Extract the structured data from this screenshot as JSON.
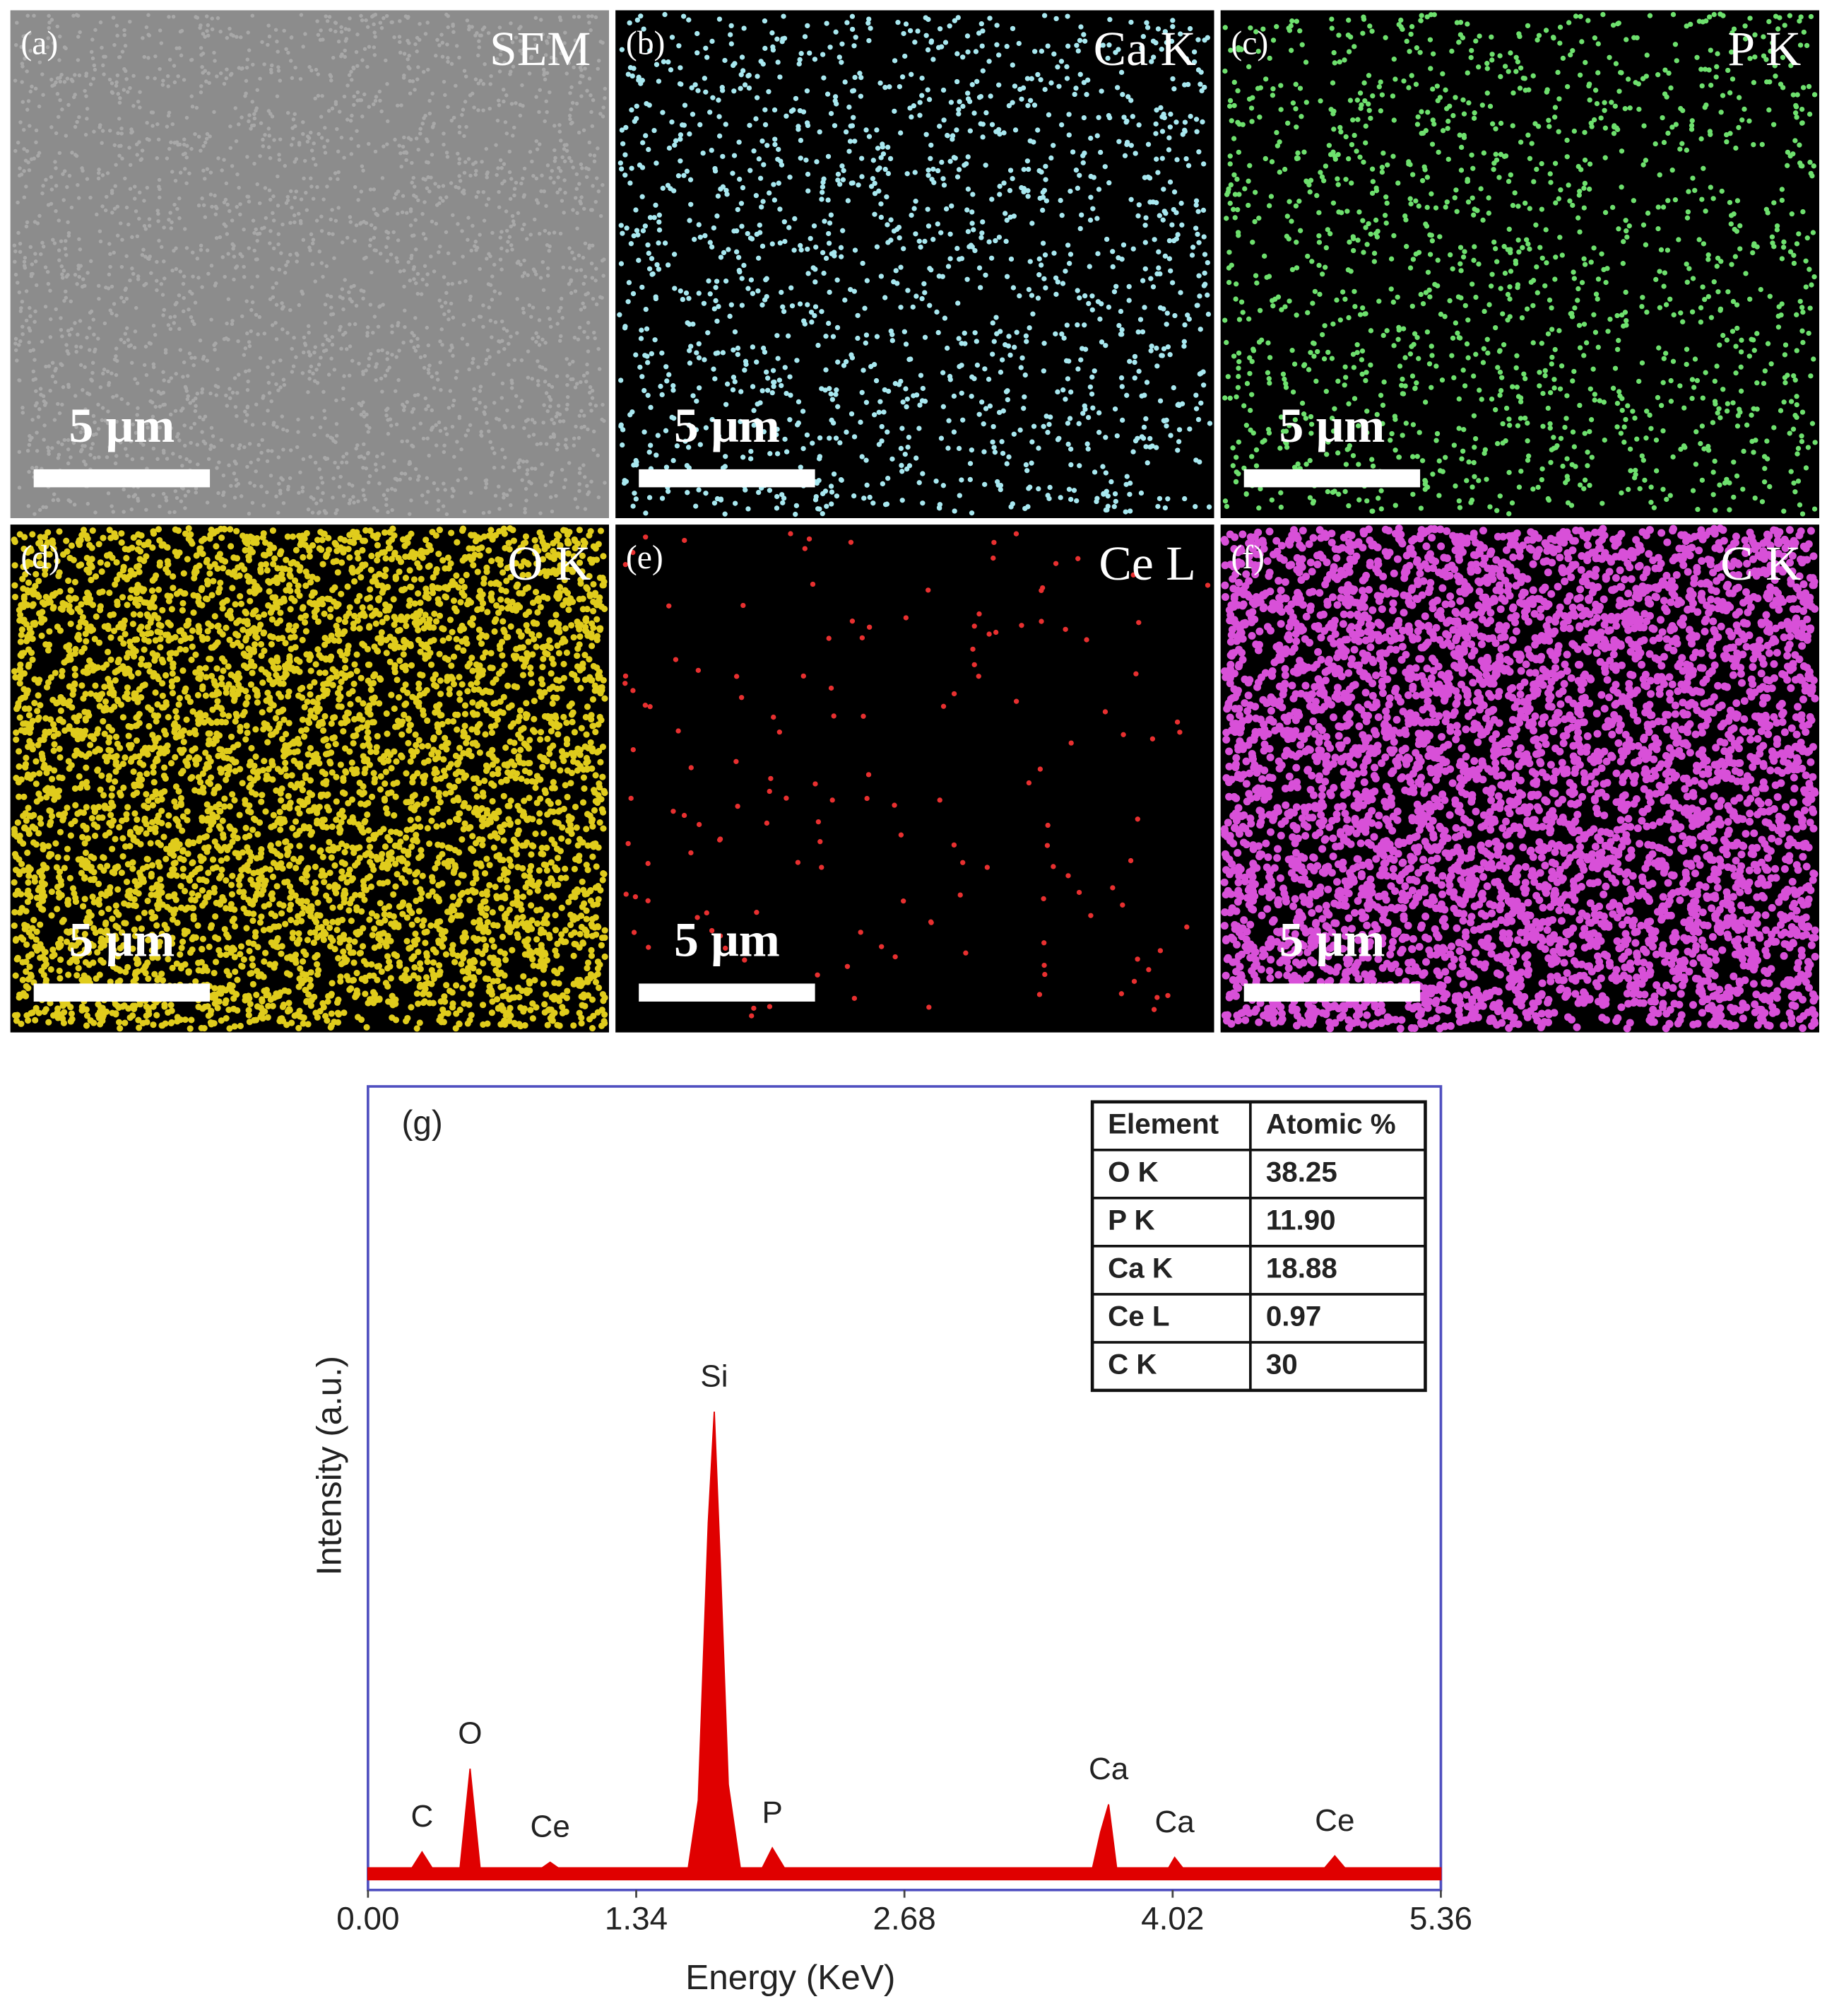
{
  "panels": [
    {
      "label": "(a)",
      "element": "SEM",
      "scale": "5 μm",
      "color": "#8c8c8c"
    },
    {
      "label": "(b)",
      "element": "Ca K",
      "scale": "5 μm",
      "color": "#a8e8f0"
    },
    {
      "label": "(c)",
      "element": "P K",
      "scale": "5 μm",
      "color": "#6ee06e"
    },
    {
      "label": "(d)",
      "element": "O K",
      "scale": "5 μm",
      "color": "#e0cc1c"
    },
    {
      "label": "(e)",
      "element": "Ce L",
      "scale": "5 μm",
      "color": "#e83030"
    },
    {
      "label": "(f)",
      "element": "C K",
      "scale": "5 μm",
      "color": "#d850d8"
    }
  ],
  "chart_data": {
    "type": "area",
    "panel_label": "(g)",
    "xlabel": "Energy (KeV)",
    "ylabel": "Intensity (a.u.)",
    "color": "#e00000",
    "frame_color": "#5050c0",
    "x": [
      0,
      0.22,
      0.27,
      0.32,
      0.46,
      0.51,
      0.56,
      0.87,
      0.91,
      0.95,
      1.6,
      1.65,
      1.7,
      1.73,
      1.76,
      1.8,
      1.86,
      1.97,
      2.02,
      2.08,
      3.62,
      3.66,
      3.7,
      3.74,
      4.0,
      4.03,
      4.07,
      4.78,
      4.83,
      4.88,
      5.36
    ],
    "values": [
      1.5,
      1.5,
      3.5,
      1.5,
      1.5,
      14,
      1.5,
      1.5,
      2.2,
      1.5,
      1.5,
      10,
      45,
      59,
      40,
      12,
      1.5,
      1.5,
      4,
      1.5,
      1.5,
      6,
      9.5,
      1.5,
      1.5,
      2.8,
      1.5,
      1.5,
      3,
      1.5,
      1.5
    ],
    "xlim": [
      0,
      5.36
    ],
    "ylim": [
      0,
      100
    ],
    "xticks": [
      {
        "value": 0,
        "label": "0.00"
      },
      1.34,
      2.68,
      4.02,
      5.36
    ],
    "peaks": [
      {
        "label": "C",
        "x": 0.27
      },
      {
        "label": "O",
        "x": 0.51
      },
      {
        "label": "Ce",
        "x": 0.91
      },
      {
        "label": "Si",
        "x": 1.73
      },
      {
        "label": "P",
        "x": 2.02
      },
      {
        "label": "Ca",
        "x": 3.7
      },
      {
        "label": "Ca",
        "x": 4.03
      },
      {
        "label": "Ce",
        "x": 4.83
      }
    ],
    "table": {
      "header": [
        "Element",
        "Atomic %"
      ],
      "rows": [
        [
          "O K",
          "38.25"
        ],
        [
          "P K",
          "11.90"
        ],
        [
          "Ca K",
          "18.88"
        ],
        [
          "Ce L",
          "0.97"
        ],
        [
          "C K",
          "30"
        ]
      ]
    }
  }
}
